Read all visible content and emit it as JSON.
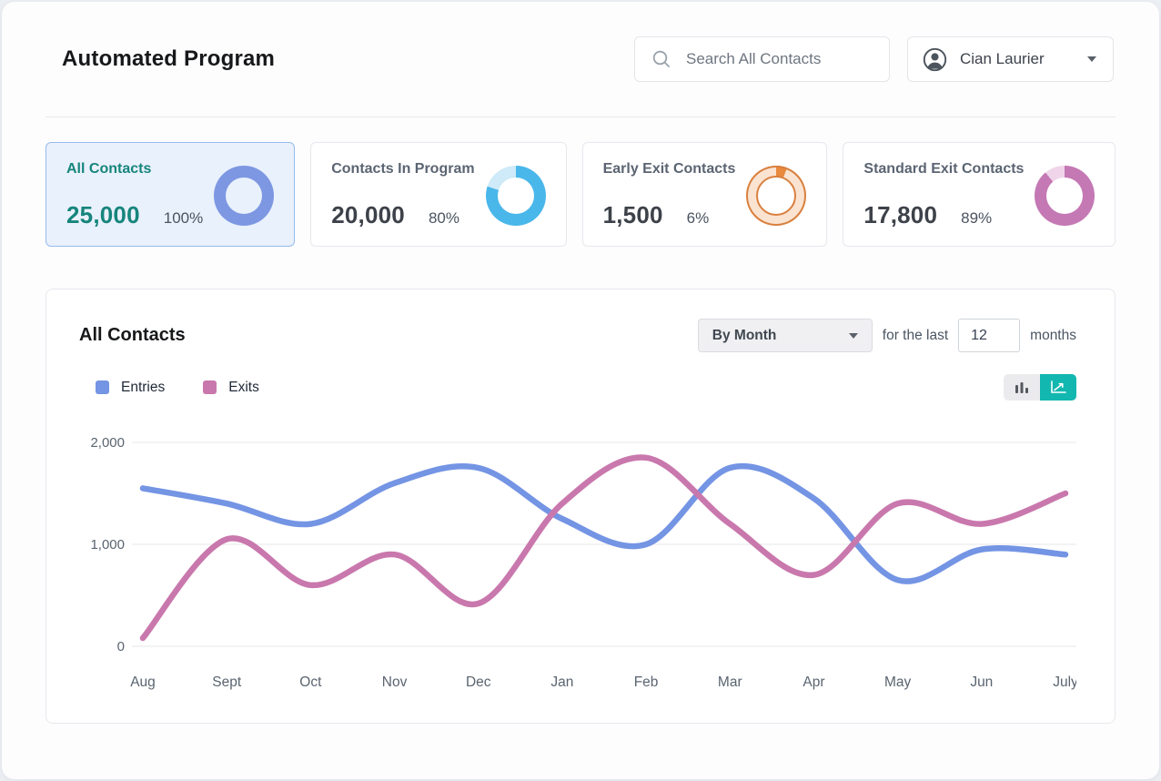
{
  "header": {
    "title": "Automated Program",
    "search_placeholder": "Search All Contacts",
    "user_name": "Cian Laurier"
  },
  "cards": [
    {
      "title": "All Contacts",
      "value": "25,000",
      "percent": "100%",
      "percent_num": 100,
      "ring_color": "#7d97e2",
      "ring_bg": "#7d97e2"
    },
    {
      "title": "Contacts In Program",
      "value": "20,000",
      "percent": "80%",
      "percent_num": 80,
      "ring_color": "#4ab7ea",
      "ring_bg": "#cfeaf8"
    },
    {
      "title": "Early Exit Contacts",
      "value": "1,500",
      "percent": "6%",
      "percent_num": 6,
      "ring_color": "#e98a3e",
      "ring_bg": "#fae3d1"
    },
    {
      "title": "Standard Exit Contacts",
      "value": "17,800",
      "percent": "89%",
      "percent_num": 89,
      "ring_color": "#c478b4",
      "ring_bg": "#f0d5ea"
    }
  ],
  "chart_section": {
    "title": "All Contacts",
    "group_by_label": "By Month",
    "range_prefix": "for the last",
    "range_value": "12",
    "range_suffix": "months",
    "legend": [
      {
        "label": "Entries",
        "color": "#7494e4"
      },
      {
        "label": "Exits",
        "color": "#c978ad"
      }
    ]
  },
  "chart_data": {
    "type": "line",
    "title": "All Contacts",
    "x": [
      "Aug",
      "Sept",
      "Oct",
      "Nov",
      "Dec",
      "Jan",
      "Feb",
      "Mar",
      "Apr",
      "May",
      "Jun",
      "July"
    ],
    "series": [
      {
        "name": "Entries",
        "color": "#7494e4",
        "values": [
          1550,
          1400,
          1200,
          1600,
          1750,
          1250,
          1000,
          1750,
          1450,
          650,
          950,
          900
        ]
      },
      {
        "name": "Exits",
        "color": "#c978ad",
        "values": [
          80,
          1050,
          600,
          900,
          420,
          1400,
          1850,
          1200,
          700,
          1400,
          1200,
          1500
        ]
      }
    ],
    "xlabel": "",
    "ylabel": "",
    "ylim": [
      0,
      2000
    ],
    "yticks": [
      "0",
      "1,000",
      "2,000"
    ],
    "grid": true,
    "legend_position": "top-left",
    "smooth": true
  }
}
